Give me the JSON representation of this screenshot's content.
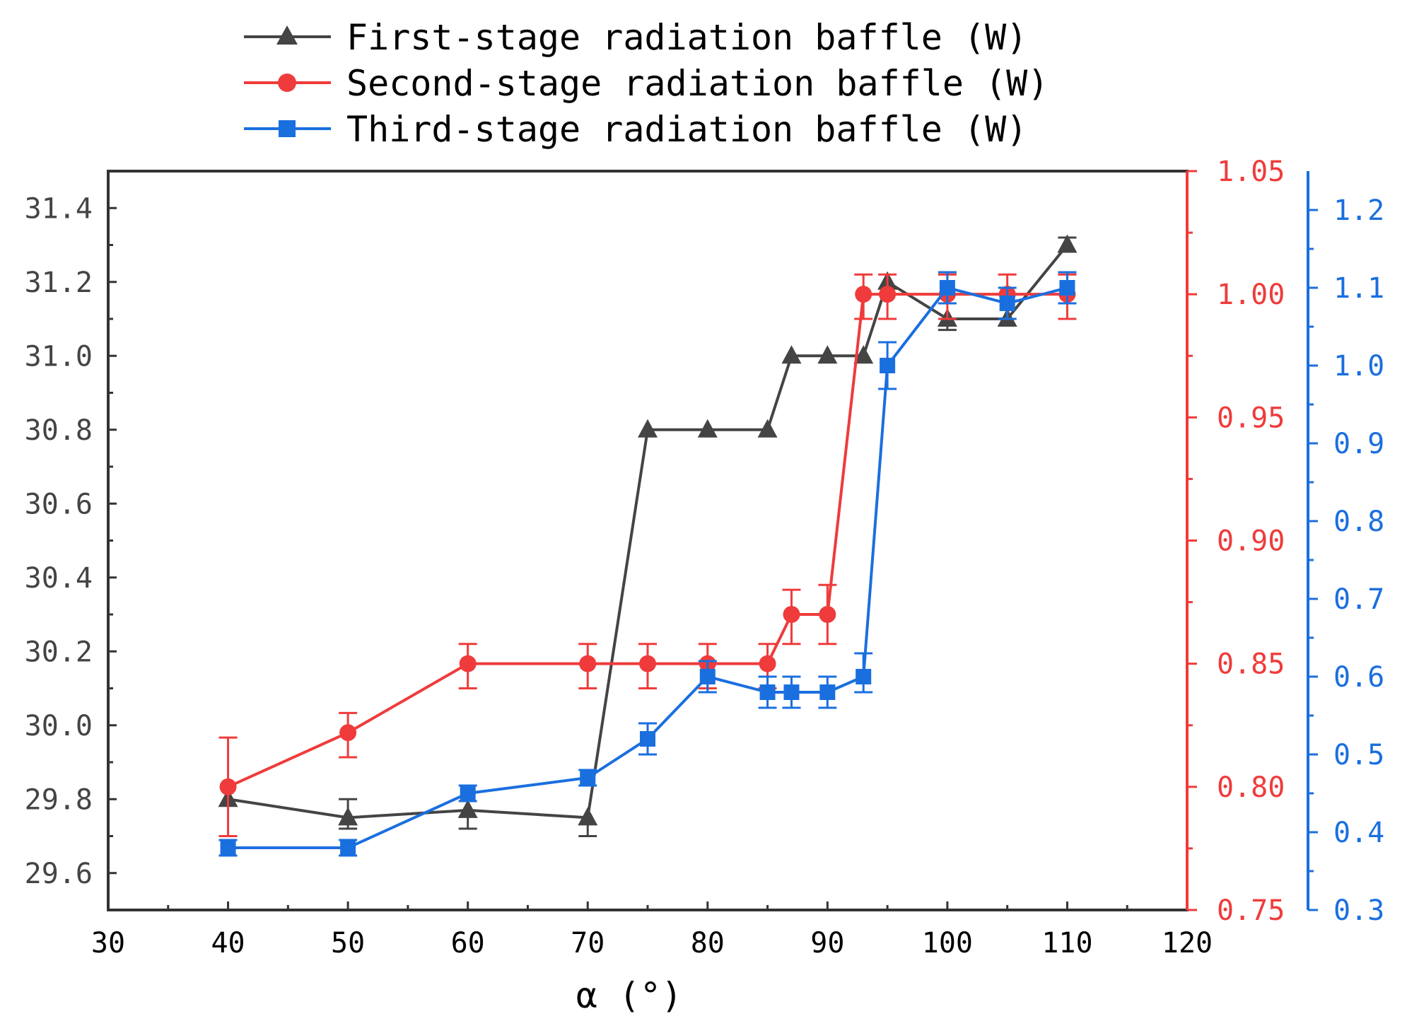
{
  "chart_data": {
    "type": "line",
    "title": "",
    "xlabel": "α (°)",
    "xlim": [
      30,
      120
    ],
    "x_ticks": [
      "30",
      "40",
      "50",
      "60",
      "70",
      "80",
      "90",
      "100",
      "110",
      "120"
    ],
    "legend_position": "top",
    "grid": false,
    "axes": {
      "left": {
        "ylim": [
          29.5,
          31.5
        ],
        "ticks": [
          "29.6",
          "29.8",
          "30.0",
          "30.2",
          "30.4",
          "30.6",
          "30.8",
          "31.0",
          "31.2",
          "31.4"
        ],
        "color": "#444444"
      },
      "right1": {
        "ylim": [
          0.75,
          1.05
        ],
        "ticks": [
          "0.75",
          "0.80",
          "0.85",
          "0.90",
          "0.95",
          "1.00",
          "1.05"
        ],
        "color": "#ef3b3b"
      },
      "right2": {
        "ylim": [
          0.3,
          1.25
        ],
        "ticks": [
          "0.3",
          "0.4",
          "0.5",
          "0.6",
          "0.7",
          "0.8",
          "0.9",
          "1.0",
          "1.1",
          "1.2"
        ],
        "color": "#1a6fdf"
      }
    },
    "series": [
      {
        "name": "First-stage radiation baffle (W)",
        "axis": "left",
        "color": "#444444",
        "marker": "triangle",
        "x": [
          40,
          50,
          60,
          70,
          75,
          80,
          85,
          87,
          90,
          93,
          95,
          100,
          105,
          110
        ],
        "values": [
          29.8,
          29.75,
          29.77,
          29.75,
          30.8,
          30.8,
          30.8,
          31.0,
          31.0,
          31.0,
          31.2,
          31.1,
          31.1,
          31.3
        ],
        "err_up": [
          0,
          0.05,
          0,
          0,
          0,
          0,
          0,
          0,
          0,
          0,
          0,
          0,
          0,
          0.02
        ],
        "err_down": [
          0,
          0.03,
          0.05,
          0.05,
          0,
          0,
          0,
          0,
          0,
          0,
          0,
          0.03,
          0,
          0
        ]
      },
      {
        "name": "Second-stage radiation baffle (W)",
        "axis": "right1",
        "color": "#ef3b3b",
        "marker": "circle",
        "x": [
          40,
          50,
          60,
          70,
          75,
          80,
          85,
          87,
          90,
          93,
          95,
          100,
          105,
          110
        ],
        "values": [
          0.8,
          0.822,
          0.85,
          0.85,
          0.85,
          0.85,
          0.85,
          0.87,
          0.87,
          1.0,
          1.0,
          1.0,
          1.0,
          1.0
        ],
        "err_up": [
          0.02,
          0.008,
          0.008,
          0.008,
          0.008,
          0.008,
          0.008,
          0.01,
          0.012,
          0.008,
          0.008,
          0.008,
          0.008,
          0.008
        ],
        "err_down": [
          0.02,
          0.01,
          0.01,
          0.01,
          0.01,
          0.01,
          0.01,
          0.012,
          0.012,
          0.01,
          0.01,
          0.01,
          0.01,
          0.01
        ]
      },
      {
        "name": "Third-stage radiation baffle (W)",
        "axis": "right2",
        "color": "#1a6fdf",
        "marker": "square",
        "x": [
          40,
          50,
          60,
          70,
          75,
          80,
          85,
          87,
          90,
          93,
          95,
          100,
          105,
          110
        ],
        "values": [
          0.38,
          0.38,
          0.45,
          0.47,
          0.52,
          0.6,
          0.58,
          0.58,
          0.58,
          0.6,
          1.0,
          1.1,
          1.08,
          1.1
        ],
        "err_up": [
          0.01,
          0.01,
          0.01,
          0.01,
          0.02,
          0.02,
          0.02,
          0.02,
          0.02,
          0.03,
          0.03,
          0.02,
          0.02,
          0.02
        ],
        "err_down": [
          0.01,
          0.01,
          0.01,
          0.01,
          0.02,
          0.02,
          0.02,
          0.02,
          0.02,
          0.02,
          0.03,
          0.02,
          0.02,
          0.02
        ]
      }
    ]
  }
}
